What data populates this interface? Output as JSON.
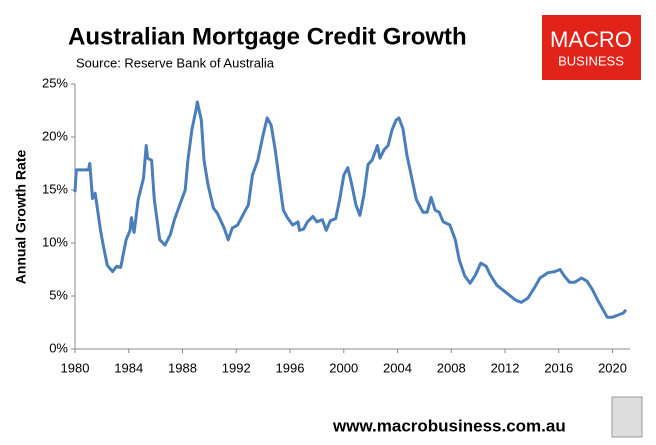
{
  "chart_data": {
    "type": "line",
    "title": "Australian Mortgage Credit Growth",
    "subtitle": "Source: Reserve Bank of Australia",
    "ylabel": "Annual Growth Rate",
    "logo": [
      "MACRO",
      "BUSINESS"
    ],
    "footer": "www.macrobusiness.com.au",
    "xlim": [
      1980,
      2021.3
    ],
    "xticks": [
      1980,
      1984,
      1988,
      1992,
      1996,
      2000,
      2004,
      2008,
      2012,
      2016,
      2020
    ],
    "ylim": [
      0,
      25
    ],
    "yticks": [
      {
        "value": 0,
        "label": "0%"
      },
      {
        "value": 5,
        "label": "5%"
      },
      {
        "value": 10,
        "label": "10%"
      },
      {
        "value": 15,
        "label": "15%"
      },
      {
        "value": 20,
        "label": "20%"
      },
      {
        "value": 25,
        "label": "25%"
      }
    ],
    "grid": false,
    "x": [
      1980.0,
      1980.1,
      1981.0,
      1981.1,
      1981.3,
      1981.5,
      1981.9,
      1982.1,
      1982.4,
      1982.8,
      1983.1,
      1983.4,
      1983.8,
      1984.1,
      1984.2,
      1984.4,
      1984.7,
      1985.1,
      1985.3,
      1985.4,
      1985.7,
      1985.9,
      1986.3,
      1986.7,
      1987.1,
      1987.4,
      1987.8,
      1988.2,
      1988.4,
      1988.7,
      1989.0,
      1989.1,
      1989.4,
      1989.6,
      1989.9,
      1990.3,
      1990.6,
      1991.1,
      1991.4,
      1991.7,
      1992.1,
      1992.6,
      1992.9,
      1993.2,
      1993.6,
      1994.0,
      1994.3,
      1994.6,
      1994.9,
      1995.2,
      1995.5,
      1995.8,
      1996.2,
      1996.6,
      1996.7,
      1997.0,
      1997.3,
      1997.7,
      1998.0,
      1998.4,
      1998.7,
      1999.0,
      1999.4,
      1999.7,
      2000.0,
      2000.3,
      2000.6,
      2000.9,
      2001.2,
      2001.5,
      2001.8,
      2002.1,
      2002.4,
      2002.5,
      2002.7,
      2003.0,
      2003.3,
      2003.6,
      2003.9,
      2004.1,
      2004.4,
      2004.7,
      2005.1,
      2005.4,
      2005.9,
      2006.2,
      2006.5,
      2006.8,
      2007.1,
      2007.4,
      2007.9,
      2008.3,
      2008.6,
      2009.0,
      2009.4,
      2009.8,
      2010.2,
      2010.6,
      2010.9,
      2011.4,
      2011.8,
      2012.3,
      2012.8,
      2013.2,
      2013.7,
      2014.2,
      2014.6,
      2015.2,
      2015.7,
      2016.1,
      2016.4,
      2016.8,
      2017.2,
      2017.7,
      2018.1,
      2018.5,
      2018.9,
      2019.3,
      2019.6,
      2020.0,
      2020.4,
      2020.8,
      2021.0
    ],
    "series": [
      {
        "name": "Annual Growth Rate",
        "color": "#4a7ebb",
        "values": [
          14.8,
          16.9,
          16.9,
          17.5,
          14.2,
          14.7,
          11.2,
          9.8,
          7.9,
          7.3,
          7.8,
          7.7,
          10.3,
          11.2,
          12.4,
          11.0,
          14.1,
          16.1,
          19.2,
          18.0,
          17.8,
          14.1,
          10.3,
          9.8,
          10.8,
          12.2,
          13.6,
          15.0,
          17.8,
          20.7,
          22.5,
          23.3,
          21.6,
          17.8,
          15.5,
          13.3,
          12.8,
          11.4,
          10.3,
          11.4,
          11.7,
          12.9,
          13.6,
          16.4,
          17.8,
          20.2,
          21.8,
          21.1,
          18.8,
          15.9,
          13.1,
          12.4,
          11.7,
          12.0,
          11.2,
          11.3,
          12.0,
          12.5,
          12.0,
          12.2,
          11.2,
          12.1,
          12.3,
          14.1,
          16.4,
          17.1,
          15.5,
          13.6,
          12.6,
          14.5,
          17.4,
          17.8,
          18.8,
          19.2,
          18.0,
          18.8,
          19.2,
          20.7,
          21.6,
          21.8,
          20.8,
          18.3,
          15.9,
          14.1,
          12.9,
          12.9,
          14.3,
          13.1,
          12.9,
          12.0,
          11.7,
          10.3,
          8.4,
          6.9,
          6.2,
          7.0,
          8.1,
          7.8,
          7.0,
          6.0,
          5.6,
          5.1,
          4.6,
          4.4,
          4.8,
          5.8,
          6.7,
          7.2,
          7.3,
          7.5,
          6.9,
          6.3,
          6.3,
          6.7,
          6.4,
          5.6,
          4.6,
          3.7,
          3.0,
          3.0,
          3.2,
          3.4,
          3.7
        ]
      }
    ]
  }
}
